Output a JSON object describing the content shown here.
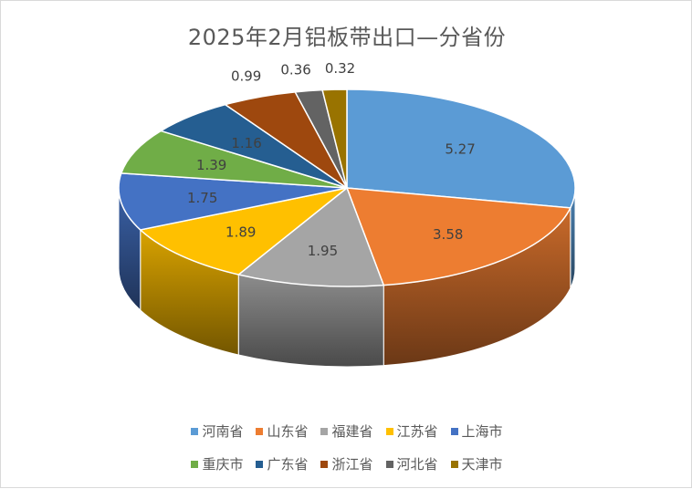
{
  "chart_data": {
    "type": "pie",
    "title": "2025年2月铝板带出口—分省份",
    "categories": [
      "河南省",
      "山东省",
      "福建省",
      "江苏省",
      "上海市",
      "重庆市",
      "广东省",
      "浙江省",
      "河北省",
      "天津市"
    ],
    "values": [
      5.27,
      3.58,
      1.95,
      1.89,
      1.75,
      1.39,
      1.16,
      0.99,
      0.36,
      0.32
    ],
    "data_labels": [
      "5.27",
      "3.58",
      "1.95",
      "1.89",
      "1.75",
      "1.39",
      "1.16",
      "0.99",
      "0.36",
      "0.32"
    ],
    "colors": [
      "#5B9BD5",
      "#ED7D31",
      "#A5A5A5",
      "#FFC000",
      "#4472C4",
      "#70AD47",
      "#255E91",
      "#9E480E",
      "#636363",
      "#997300"
    ],
    "style": "3d",
    "legend_position": "bottom"
  }
}
